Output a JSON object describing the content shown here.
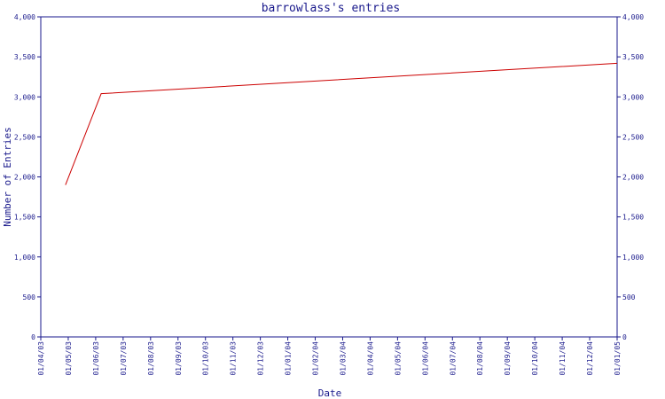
{
  "chart_data": {
    "type": "line",
    "title": "barrowlass's entries",
    "xlabel": "Date",
    "ylabel": "Number of Entries",
    "ylim": [
      0,
      4000
    ],
    "y_ticks": [
      0,
      500,
      1000,
      1500,
      2000,
      2500,
      3000,
      3500,
      4000
    ],
    "y_tick_labels": [
      "0",
      "500",
      "1,000",
      "1,500",
      "2,000",
      "2,500",
      "3,000",
      "3,500",
      "4,000"
    ],
    "x_tick_labels": [
      "01/04/03",
      "01/05/03",
      "01/06/03",
      "01/07/03",
      "01/08/03",
      "01/09/03",
      "01/10/03",
      "01/11/03",
      "01/12/03",
      "01/01/04",
      "01/02/04",
      "01/03/04",
      "01/04/04",
      "01/05/04",
      "01/06/04",
      "01/07/04",
      "01/08/04",
      "01/09/04",
      "01/10/04",
      "01/11/04",
      "01/12/04",
      "01/01/05"
    ],
    "x_tick_months": [
      0,
      1,
      2,
      3,
      4,
      5,
      6,
      7,
      8,
      9,
      10,
      11,
      12,
      13,
      14,
      15,
      16,
      17,
      18,
      19,
      20,
      21
    ],
    "xlim_months": [
      0,
      21
    ],
    "series": [
      {
        "color": "#cc0000",
        "points": [
          {
            "date": "2003-04-28",
            "x_months": 0.9,
            "y": 1900
          },
          {
            "date": "2003-06-06",
            "x_months": 2.2,
            "y": 3040
          },
          {
            "date": "2005-01-01",
            "x_months": 21.0,
            "y": 3420
          }
        ]
      }
    ],
    "grid": false,
    "colors": {
      "axis": "#1a1a8c",
      "series": "#cc0000",
      "background": "#ffffff"
    }
  }
}
